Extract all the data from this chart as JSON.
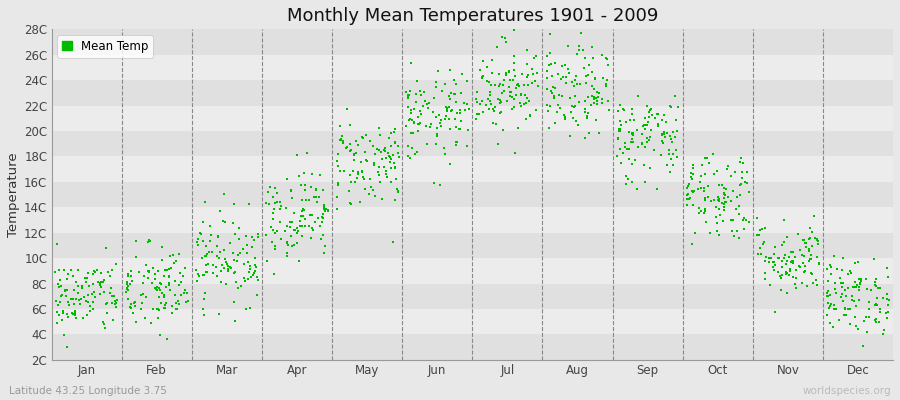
{
  "title": "Monthly Mean Temperatures 1901 - 2009",
  "ylabel": "Temperature",
  "xlabel_bottom_left": "Latitude 43.25 Longitude 3.75",
  "xlabel_bottom_right": "worldspecies.org",
  "legend_label": "Mean Temp",
  "marker_color": "#00bb00",
  "background_color": "#e8e8e8",
  "band_colors": [
    "#e0e0e0",
    "#ececec"
  ],
  "ytick_labels": [
    "2C",
    "4C",
    "6C",
    "8C",
    "10C",
    "12C",
    "14C",
    "16C",
    "18C",
    "20C",
    "22C",
    "24C",
    "26C",
    "28C"
  ],
  "ytick_values": [
    2,
    4,
    6,
    8,
    10,
    12,
    14,
    16,
    18,
    20,
    22,
    24,
    26,
    28
  ],
  "months": [
    "Jan",
    "Feb",
    "Mar",
    "Apr",
    "May",
    "Jun",
    "Jul",
    "Aug",
    "Sep",
    "Oct",
    "Nov",
    "Dec"
  ],
  "month_positions": [
    0.5,
    1.5,
    2.5,
    3.5,
    4.5,
    5.5,
    6.5,
    7.5,
    8.5,
    9.5,
    10.5,
    11.5
  ],
  "dashed_lines": [
    1,
    2,
    3,
    4,
    5,
    6,
    7,
    8,
    9,
    10,
    11
  ],
  "ylim": [
    2,
    28
  ],
  "xlim": [
    0,
    12
  ],
  "num_years": 109,
  "mean_temps": [
    7.0,
    7.5,
    10.0,
    13.5,
    17.5,
    21.0,
    23.5,
    23.0,
    19.5,
    15.0,
    10.0,
    7.0
  ],
  "std_temps": [
    1.5,
    1.8,
    1.8,
    1.8,
    1.8,
    1.8,
    1.8,
    1.8,
    1.8,
    1.8,
    1.5,
    1.5
  ],
  "seed": 42
}
